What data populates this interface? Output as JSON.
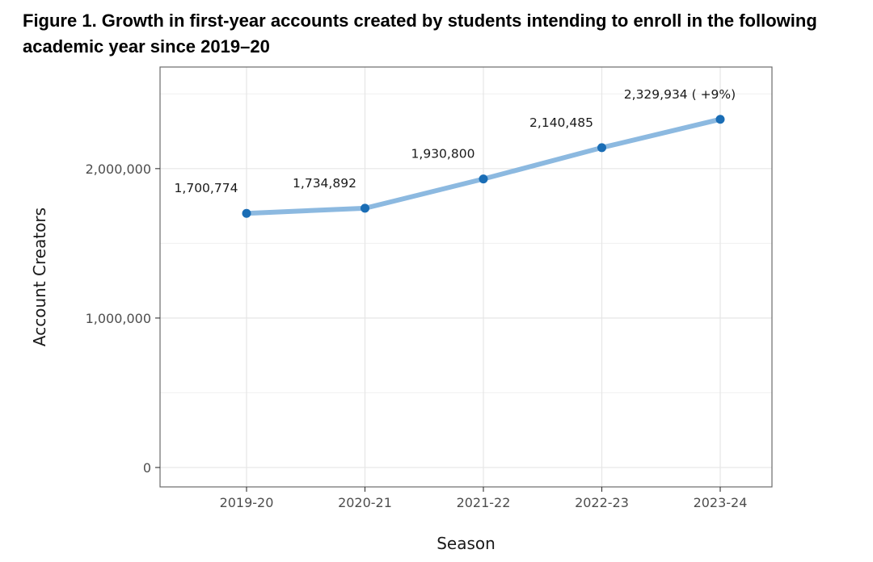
{
  "figure": {
    "title": "Figure 1. Growth in first-year accounts created by students intending to enroll in the following academic year since 2019–20"
  },
  "colors": {
    "line": "#8cb9e0",
    "point": "#1a6db5",
    "panel_border": "#6b6b6b",
    "grid_major": "#e6e6e6",
    "grid_minor": "#f0f0f0"
  },
  "chart_data": {
    "type": "line",
    "title": "",
    "xlabel": "Season",
    "ylabel": "Account Creators",
    "categories": [
      "2019-20",
      "2020-21",
      "2021-22",
      "2022-23",
      "2023-24"
    ],
    "series": [
      {
        "values": [
          1700774,
          1734892,
          1930800,
          2140485,
          2329934
        ]
      }
    ],
    "data_labels": [
      "1,700,774",
      "1,734,892",
      "1,930,800",
      "2,140,485",
      "2,329,934 ( +9%)"
    ],
    "yticks": [
      0,
      1000000,
      2000000
    ],
    "ytick_labels": [
      "0",
      "1,000,000",
      "2,000,000"
    ],
    "ylim": [
      -130000,
      2680000
    ],
    "grid": true,
    "legend": "none"
  }
}
